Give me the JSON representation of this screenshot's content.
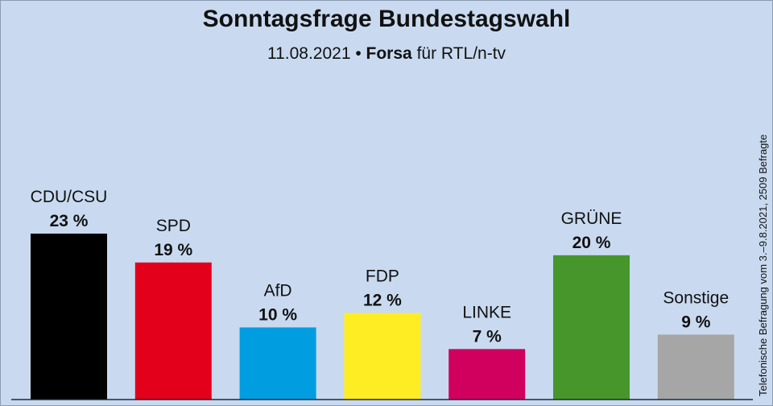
{
  "header": {
    "title": "Sonntagsfrage Bundestagswahl",
    "subtitle_date": "11.08.2021 •",
    "subtitle_institute": "Forsa",
    "subtitle_client": "für RTL/n-tv"
  },
  "side_note": "Telefonische Befragung vom 3.–9.8.2021, 2509 Befragte",
  "chart_data": {
    "type": "bar",
    "title": "Sonntagsfrage Bundestagswahl",
    "subtitle": "11.08.2021 • Forsa für RTL/n-tv",
    "xlabel": "",
    "ylabel": "",
    "ylim": [
      0,
      23
    ],
    "unit": "%",
    "grid": false,
    "categories": [
      "CDU/CSU",
      "SPD",
      "AfD",
      "FDP",
      "LINKE",
      "GRÜNE",
      "Sonstige"
    ],
    "values": [
      23,
      19,
      10,
      12,
      7,
      20,
      9
    ],
    "value_labels": [
      "23 %",
      "19 %",
      "10 %",
      "12 %",
      "7 %",
      "20 %",
      "9 %"
    ],
    "colors": [
      "#000000",
      "#e3001b",
      "#009ee0",
      "#ffed23",
      "#d1005f",
      "#46962b",
      "#a6a6a6"
    ],
    "annotation": "Telefonische Befragung vom 3.–9.8.2021, 2509 Befragte"
  }
}
